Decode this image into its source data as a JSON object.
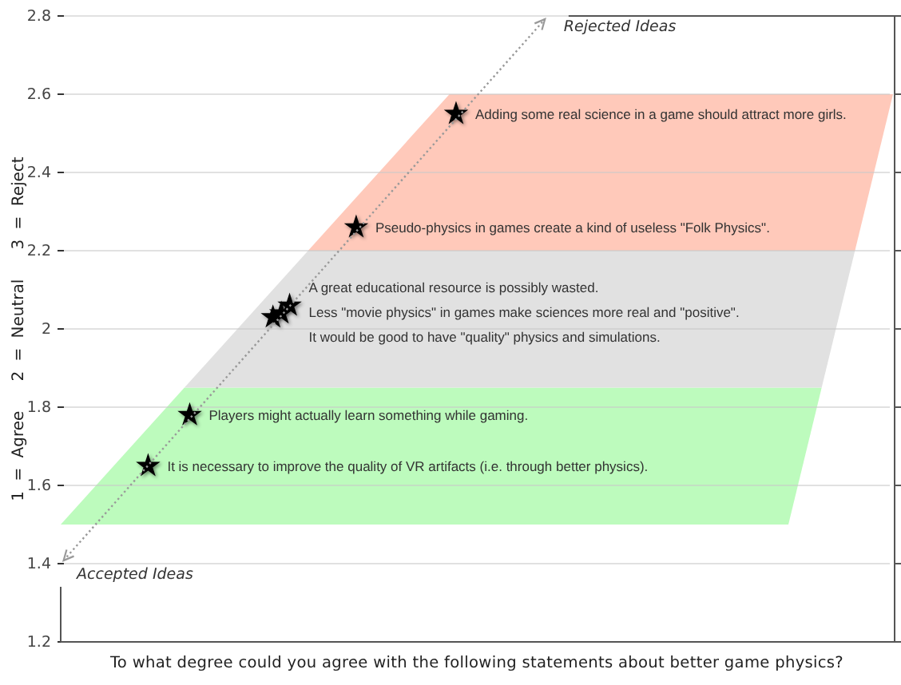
{
  "chart_data": {
    "type": "scatter",
    "xlabel": "To what degree could you agree with the following statements about better game physics?",
    "ylabel": "1 = Agree   2 = Neutral   3 = Reject",
    "categories": [
      null,
      null,
      null,
      null,
      null,
      null,
      null,
      null,
      null,
      null,
      null,
      null,
      null,
      null,
      null,
      null,
      null,
      null,
      null,
      null,
      null,
      null,
      null,
      null,
      null,
      null,
      null,
      null,
      null,
      null,
      null,
      null,
      null,
      null,
      null,
      null,
      null,
      null,
      null,
      null,
      null,
      null,
      null,
      null,
      null,
      null,
      null,
      null,
      null,
      null,
      null,
      null,
      null,
      null,
      null,
      null,
      null,
      null,
      null,
      null,
      null,
      null,
      null,
      null,
      null,
      null,
      null,
      null,
      null,
      null,
      null,
      null,
      null,
      null,
      null,
      null,
      null,
      null,
      null,
      null,
      null,
      null,
      null,
      null,
      null,
      null,
      null,
      null,
      null,
      null,
      null,
      null,
      null,
      null,
      null,
      null,
      null,
      null,
      null,
      null
    ],
    "values": [
      null,
      null,
      null,
      null,
      null,
      null,
      null,
      null,
      null,
      null,
      1.65,
      null,
      null,
      null,
      null,
      1.78,
      null,
      null,
      null,
      null,
      null,
      null,
      null,
      null,
      null,
      2.03,
      2.04,
      2.06,
      null,
      null,
      null,
      null,
      null,
      null,
      null,
      2.26,
      null,
      null,
      null,
      null,
      null,
      null,
      null,
      null,
      null,
      null,
      null,
      2.55,
      null,
      null,
      null,
      null,
      null,
      null,
      null,
      null,
      null,
      null,
      null,
      null,
      null,
      null,
      null,
      null,
      null,
      null,
      null,
      null,
      null,
      null,
      null,
      null,
      null,
      null,
      null,
      null,
      null,
      null,
      null,
      null,
      null,
      null,
      null,
      null,
      null,
      null,
      null,
      null,
      null,
      null,
      null,
      null,
      null,
      null,
      null,
      null,
      null,
      null,
      null,
      null
    ],
    "color": "#000000",
    "ylim": [
      1.2,
      2.8
    ],
    "yticks": [
      1.2,
      1.4,
      1.6,
      1.8,
      2,
      2.2,
      2.4,
      2.6,
      2.8
    ],
    "tick_labels": "y",
    "grid": "y",
    "marker": "star",
    "bands": [
      {
        "axis": "y",
        "from": 1.5,
        "to": 1.85,
        "color": "#bdfbbd"
      },
      {
        "axis": "y",
        "from": 1.85,
        "to": 2.2,
        "color": "#e1e1e1"
      },
      {
        "axis": "y",
        "from": 2.2,
        "to": 2.6,
        "color": "#ffc9ba"
      }
    ],
    "annotations": [
      "It is necessary to improve the quality of VR artifacts (i.e. through better physics).",
      "Players might actually learn something while gaming.",
      "It would be good to have \"quality\" physics and simulations.",
      "Less \"movie physics\" in games make sciences more real and \"positive\".",
      "A great educational resource is possibly wasted.",
      "Pseudo-physics in games create a kind of useless \"Folk Physics\".",
      "Adding some real science in a game should attract more girls.",
      "Accepted Ideas",
      "Rejected Ideas"
    ]
  }
}
